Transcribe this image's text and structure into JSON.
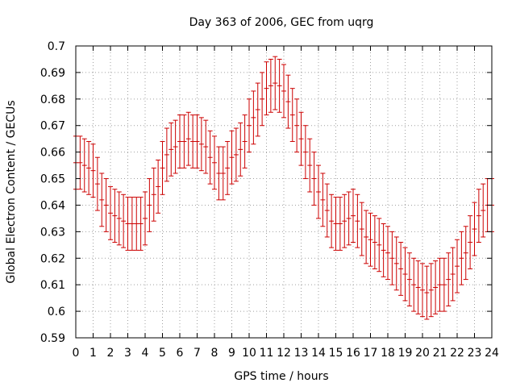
{
  "chart_data": {
    "type": "scatter",
    "title": "Day 363 of 2006, GEC from uqrg",
    "xlabel": "GPS time / hours",
    "ylabel": "Global Electron Content / GECUs",
    "xlim": [
      0,
      24
    ],
    "ylim": [
      0.59,
      0.7
    ],
    "xticks": [
      0,
      1,
      2,
      3,
      4,
      5,
      6,
      7,
      8,
      9,
      10,
      11,
      12,
      13,
      14,
      15,
      16,
      17,
      18,
      19,
      20,
      21,
      22,
      23,
      24
    ],
    "yticks": [
      0.59,
      0.6,
      0.61,
      0.62,
      0.63,
      0.64,
      0.65,
      0.66,
      0.67,
      0.68,
      0.69,
      0.7
    ],
    "ytick_labels": [
      "0.59",
      "0.6",
      "0.61",
      "0.62",
      "0.63",
      "0.64",
      "0.65",
      "0.66",
      "0.67",
      "0.68",
      "0.69",
      "0.7"
    ],
    "grid": true,
    "error_bar": 0.01,
    "color": "#cc0000",
    "x": [
      0,
      0.25,
      0.5,
      0.75,
      1,
      1.25,
      1.5,
      1.75,
      2,
      2.25,
      2.5,
      2.75,
      3,
      3.25,
      3.5,
      3.75,
      4,
      4.25,
      4.5,
      4.75,
      5,
      5.25,
      5.5,
      5.75,
      6,
      6.25,
      6.5,
      6.75,
      7,
      7.25,
      7.5,
      7.75,
      8,
      8.25,
      8.5,
      8.75,
      9,
      9.25,
      9.5,
      9.75,
      10,
      10.25,
      10.5,
      10.75,
      11,
      11.25,
      11.5,
      11.75,
      12,
      12.25,
      12.5,
      12.75,
      13,
      13.25,
      13.5,
      13.75,
      14,
      14.25,
      14.5,
      14.75,
      15,
      15.25,
      15.5,
      15.75,
      16,
      16.25,
      16.5,
      16.75,
      17,
      17.25,
      17.5,
      17.75,
      18,
      18.25,
      18.5,
      18.75,
      19,
      19.25,
      19.5,
      19.75,
      20,
      20.25,
      20.5,
      20.75,
      21,
      21.25,
      21.5,
      21.75,
      22,
      22.25,
      22.5,
      22.75,
      23,
      23.25,
      23.5,
      23.75,
      24
    ],
    "y": [
      0.656,
      0.656,
      0.655,
      0.654,
      0.653,
      0.648,
      0.642,
      0.64,
      0.637,
      0.636,
      0.635,
      0.634,
      0.633,
      0.633,
      0.633,
      0.633,
      0.635,
      0.64,
      0.644,
      0.647,
      0.654,
      0.659,
      0.661,
      0.662,
      0.664,
      0.664,
      0.665,
      0.664,
      0.664,
      0.663,
      0.662,
      0.658,
      0.656,
      0.652,
      0.652,
      0.654,
      0.658,
      0.659,
      0.661,
      0.664,
      0.67,
      0.673,
      0.676,
      0.68,
      0.684,
      0.685,
      0.686,
      0.685,
      0.683,
      0.679,
      0.674,
      0.67,
      0.665,
      0.66,
      0.655,
      0.65,
      0.645,
      0.642,
      0.638,
      0.634,
      0.633,
      0.633,
      0.634,
      0.635,
      0.636,
      0.634,
      0.631,
      0.628,
      0.627,
      0.626,
      0.625,
      0.623,
      0.622,
      0.62,
      0.618,
      0.616,
      0.614,
      0.612,
      0.61,
      0.609,
      0.608,
      0.607,
      0.608,
      0.609,
      0.61,
      0.61,
      0.612,
      0.614,
      0.617,
      0.62,
      0.622,
      0.626,
      0.631,
      0.636,
      0.638,
      0.64,
      0.64
    ]
  }
}
